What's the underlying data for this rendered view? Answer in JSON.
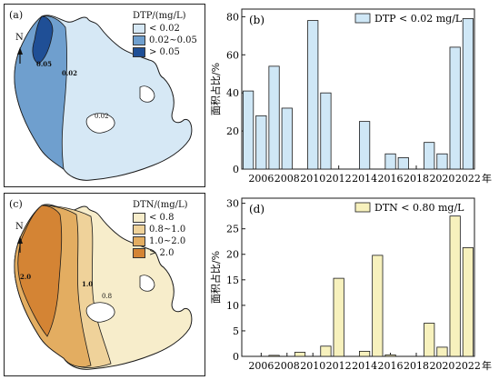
{
  "panels": {
    "a": {
      "tag": "(a)",
      "north": "N",
      "legend_title": "DTP/(mg/L)",
      "legend": [
        {
          "label": "< 0.02",
          "color": "#d6e8f5"
        },
        {
          "label": "0.02~0.05",
          "color": "#6f9fce"
        },
        {
          "label": "> 0.05",
          "color": "#1f4f96"
        }
      ],
      "contour_labels": [
        "0.05",
        "0.02",
        "0.02"
      ]
    },
    "c": {
      "tag": "(c)",
      "north": "N",
      "legend_title": "DTN/(mg/L)",
      "legend": [
        {
          "label": "< 0.8",
          "color": "#f7edcb"
        },
        {
          "label": "0.8~1.0",
          "color": "#efd29a"
        },
        {
          "label": "1.0~2.0",
          "color": "#e3ad61"
        },
        {
          "label": "> 2.0",
          "color": "#d48434"
        }
      ],
      "contour_labels": [
        "2.0",
        "1.0",
        "0.8"
      ]
    }
  },
  "colors": {
    "bar_b": "#cfe7f6",
    "bar_d": "#f7f1bd",
    "stroke": "#1a1a1a"
  },
  "chart_data": [
    {
      "panel": "(b)",
      "type": "bar",
      "legend": "DTP < 0.02 mg/L",
      "ylabel": "面积占比/%",
      "xlabel": "年",
      "x": [
        2005,
        2006,
        2007,
        2008,
        2010,
        2011,
        2014,
        2016,
        2017,
        2019,
        2020,
        2021,
        2022
      ],
      "values": [
        41,
        28,
        54,
        32,
        78,
        40,
        25,
        8,
        6,
        14,
        8,
        64,
        79
      ],
      "xticks": [
        "2006",
        "2008",
        "2010",
        "2012",
        "2014",
        "2016",
        "2018",
        "2020",
        "2022"
      ],
      "xlim": [
        2004.5,
        2022.5
      ],
      "ylim": [
        0,
        84
      ],
      "yticks": [
        0,
        20,
        40,
        60,
        80
      ]
    },
    {
      "panel": "(d)",
      "type": "bar",
      "legend": "DTN < 0.80 mg/L",
      "ylabel": "面积占比/%",
      "xlabel": "年",
      "x": [
        2007,
        2009,
        2011,
        2012,
        2014,
        2015,
        2016,
        2019,
        2020,
        2021,
        2022
      ],
      "values": [
        0.2,
        0.8,
        2,
        15.3,
        1,
        19.8,
        0.3,
        6.5,
        1.8,
        27.5,
        21.3
      ],
      "xticks": [
        "2006",
        "2008",
        "2010",
        "2012",
        "2014",
        "2016",
        "2018",
        "2020",
        "2022"
      ],
      "xlim": [
        2004.5,
        2022.5
      ],
      "ylim": [
        0,
        31
      ],
      "yticks": [
        0,
        5,
        10,
        15,
        20,
        25,
        30
      ]
    }
  ]
}
